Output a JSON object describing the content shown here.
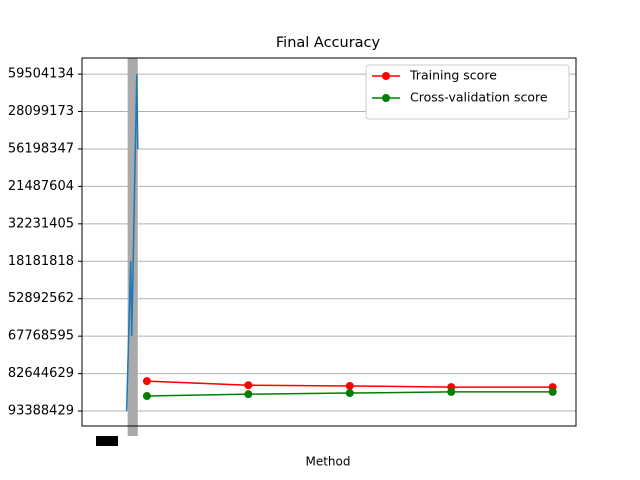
{
  "chart_data": {
    "type": "line",
    "title": "Final Accuracy",
    "x_label": "Method",
    "xlim": [
      0.36,
      5.23
    ],
    "ylim": [
      -0.4,
      9.43
    ],
    "yticks": [
      {
        "value": 0,
        "label": "93388429"
      },
      {
        "value": 1,
        "label": "82644629"
      },
      {
        "value": 2,
        "label": "67768595"
      },
      {
        "value": 3,
        "label": "52892562"
      },
      {
        "value": 4,
        "label": "18181818"
      },
      {
        "value": 5,
        "label": "32231405"
      },
      {
        "value": 6,
        "label": "21487604"
      },
      {
        "value": 7,
        "label": "56198347"
      },
      {
        "value": 8,
        "label": "28099173"
      },
      {
        "value": 9,
        "label": "59504134"
      }
    ],
    "grid": true,
    "highlight": [
      0.81,
      0.91
    ],
    "legend": "upper right",
    "series": [
      {
        "color": "#1f77b4",
        "marker": false,
        "x": [
          0.8,
          0.84,
          0.85,
          0.9,
          0.91
        ],
        "values": [
          0,
          4,
          2,
          9,
          7
        ]
      },
      {
        "name": "Training score",
        "color": "#ff0000",
        "marker": true,
        "x": [
          1,
          2,
          3,
          4,
          5
        ],
        "values": [
          0.8,
          0.69,
          0.67,
          0.64,
          0.64
        ]
      },
      {
        "name": "Cross-validation score",
        "color": "#008000",
        "marker": true,
        "x": [
          1,
          2,
          3,
          4,
          5
        ],
        "values": [
          0.4,
          0.45,
          0.48,
          0.51,
          0.51
        ]
      }
    ]
  }
}
